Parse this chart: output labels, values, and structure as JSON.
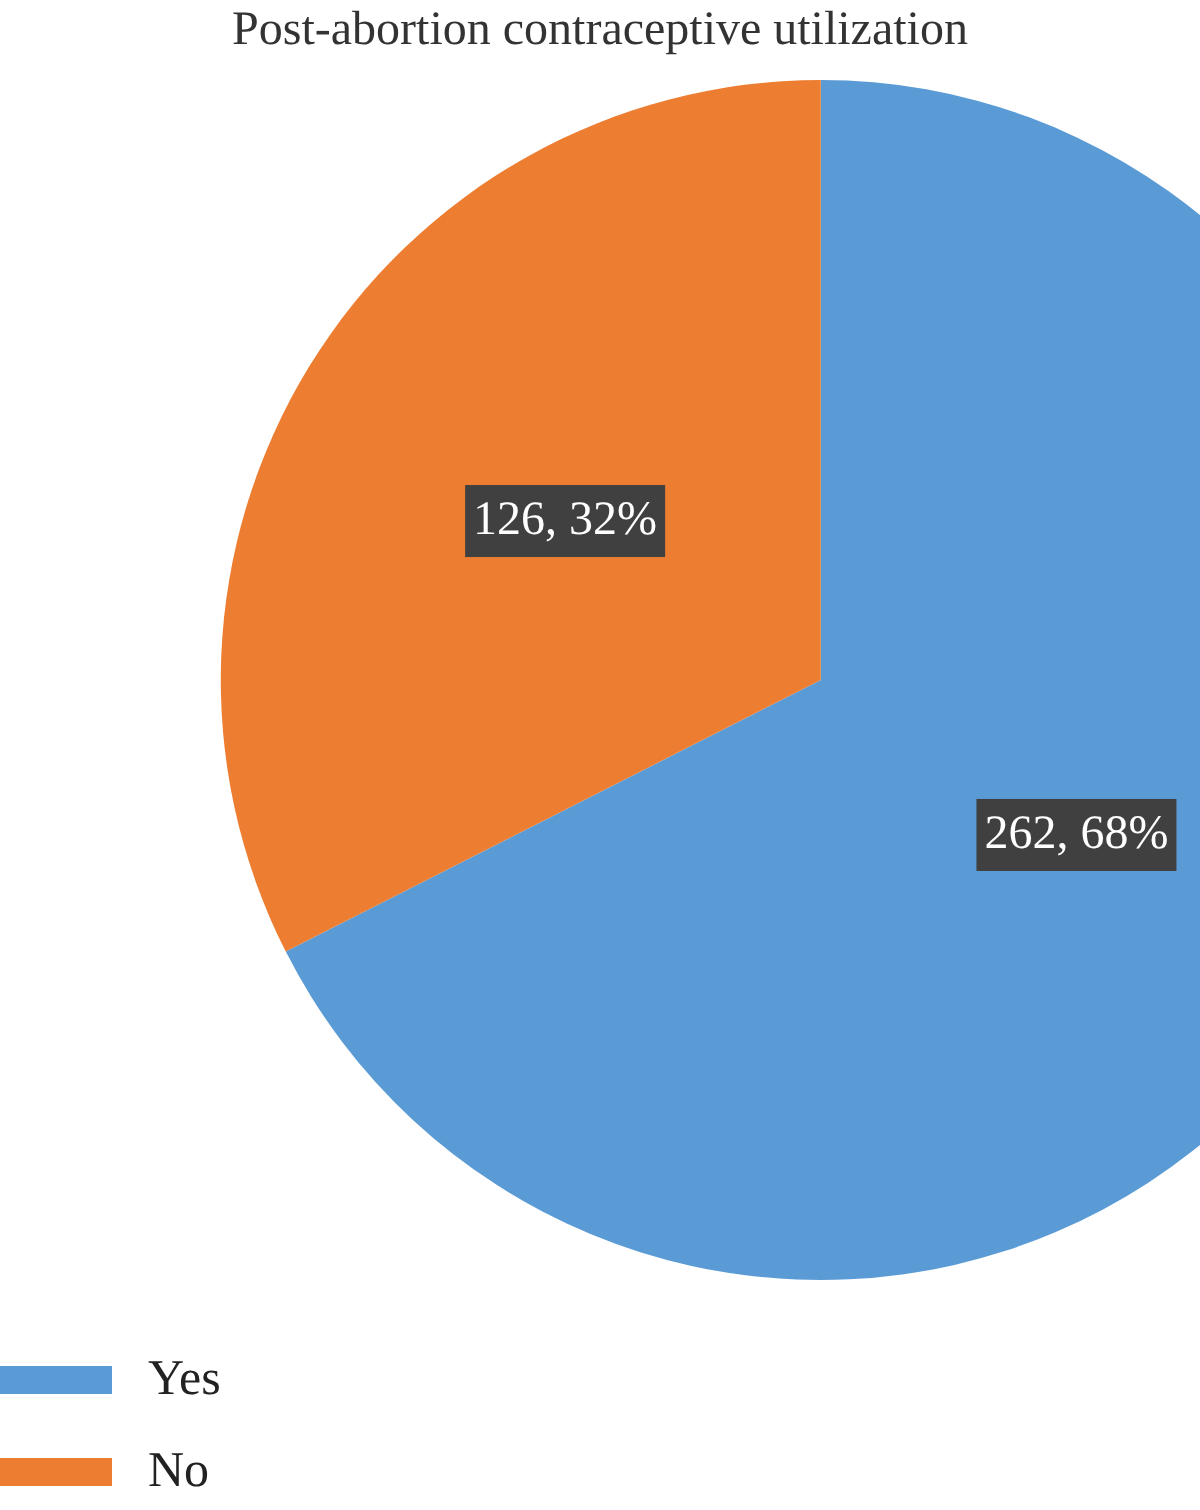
{
  "chart_data": {
    "type": "pie",
    "title": "Post-abortion contraceptive utilization",
    "categories": [
      "Yes",
      "No"
    ],
    "values": [
      262,
      126
    ],
    "colors": [
      "#5b9bd5",
      "#ed7d31"
    ],
    "value_labels": [
      "262, 68%",
      "126, 32%"
    ],
    "legend": "bottom left"
  }
}
